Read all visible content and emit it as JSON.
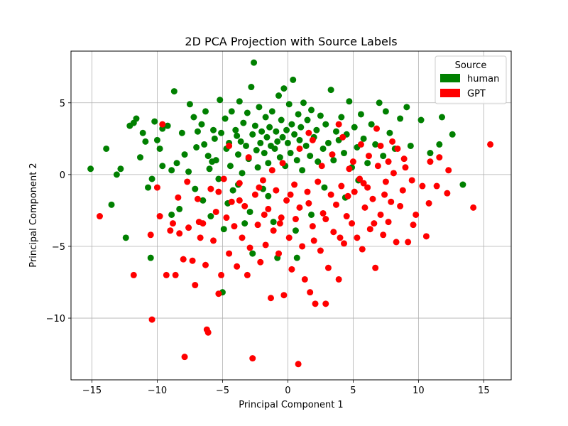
{
  "chart_data": {
    "type": "scatter",
    "title": "2D PCA Projection with Source Labels",
    "xlabel": "Principal Component 1",
    "ylabel": "Principal Component 2",
    "xlim": [
      -16.6,
      17.1
    ],
    "ylim": [
      -14.3,
      8.6
    ],
    "xticks": [
      -15,
      -10,
      -5,
      0,
      5,
      10,
      15
    ],
    "xtick_labels": [
      "−15",
      "−10",
      "−5",
      "0",
      "5",
      "10",
      "15"
    ],
    "yticks": [
      5,
      0,
      -5,
      -10
    ],
    "ytick_labels": [
      "5",
      "0",
      "−5",
      "−10"
    ],
    "grid": true,
    "legend": {
      "title": "Source",
      "placement": "top-right"
    },
    "series": [
      {
        "name": "human",
        "color": "#008000",
        "points": [
          [
            -15.1,
            0.4
          ],
          [
            -13.9,
            1.8
          ],
          [
            -13.5,
            -2.1
          ],
          [
            -13.1,
            0.0
          ],
          [
            -12.8,
            0.4
          ],
          [
            -12.4,
            -4.4
          ],
          [
            -11.8,
            3.6
          ],
          [
            -11.6,
            3.9
          ],
          [
            -11.1,
            2.9
          ],
          [
            -10.9,
            2.3
          ],
          [
            -10.7,
            -0.9
          ],
          [
            -10.4,
            -0.3
          ],
          [
            -10.2,
            3.7
          ],
          [
            -10.0,
            2.4
          ],
          [
            -9.8,
            1.8
          ],
          [
            -9.6,
            3.2
          ],
          [
            -9.2,
            3.4
          ],
          [
            -8.9,
            0.3
          ],
          [
            -8.7,
            5.8
          ],
          [
            -8.5,
            0.8
          ],
          [
            -8.3,
            -2.4
          ],
          [
            -8.1,
            2.9
          ],
          [
            -7.9,
            1.4
          ],
          [
            -7.6,
            0.2
          ],
          [
            -7.5,
            4.9
          ],
          [
            -7.2,
            4.0
          ],
          [
            -7.0,
            1.9
          ],
          [
            -6.9,
            3.0
          ],
          [
            -6.6,
            3.5
          ],
          [
            -6.4,
            2.1
          ],
          [
            -6.3,
            4.4
          ],
          [
            -6.1,
            1.3
          ],
          [
            -6.0,
            0.4
          ],
          [
            -5.9,
            -2.9
          ],
          [
            -5.7,
            3.1
          ],
          [
            -5.6,
            2.5
          ],
          [
            -5.5,
            1.0
          ],
          [
            -5.3,
            -0.3
          ],
          [
            -5.2,
            5.2
          ],
          [
            -5.1,
            2.9
          ],
          [
            -5.0,
            -8.2
          ],
          [
            -4.8,
            3.9
          ],
          [
            -4.7,
            1.8
          ],
          [
            -4.5,
            2.2
          ],
          [
            -4.4,
            0.6
          ],
          [
            -4.3,
            4.4
          ],
          [
            -4.2,
            -1.1
          ],
          [
            -4.0,
            3.1
          ],
          [
            -3.9,
            2.7
          ],
          [
            -3.8,
            1.4
          ],
          [
            -3.7,
            5.1
          ],
          [
            -3.6,
            2.3
          ],
          [
            -3.5,
            0.1
          ],
          [
            -3.4,
            3.6
          ],
          [
            -3.3,
            -3.4
          ],
          [
            -3.2,
            2.0
          ],
          [
            -3.1,
            4.3
          ],
          [
            -3.0,
            1.1
          ],
          [
            -2.9,
            -2.6
          ],
          [
            -2.8,
            6.1
          ],
          [
            -2.7,
            2.8
          ],
          [
            -2.6,
            7.8
          ],
          [
            -2.5,
            3.4
          ],
          [
            -2.4,
            1.7
          ],
          [
            -2.3,
            0.5
          ],
          [
            -2.2,
            4.7
          ],
          [
            -2.1,
            2.2
          ],
          [
            -2.0,
            3.0
          ],
          [
            -1.9,
            -1.0
          ],
          [
            -1.8,
            1.5
          ],
          [
            -1.7,
            4.0
          ],
          [
            -1.6,
            2.6
          ],
          [
            -1.5,
            0.8
          ],
          [
            -1.4,
            3.3
          ],
          [
            -1.3,
            2.0
          ],
          [
            -1.2,
            4.4
          ],
          [
            -1.1,
            -3.3
          ],
          [
            -1.0,
            1.8
          ],
          [
            -0.9,
            3.0
          ],
          [
            -0.8,
            2.3
          ],
          [
            -0.7,
            5.5
          ],
          [
            -0.6,
            1.2
          ],
          [
            -0.5,
            3.8
          ],
          [
            -0.4,
            2.6
          ],
          [
            -0.3,
            6.0
          ],
          [
            -0.2,
            0.6
          ],
          [
            -0.1,
            3.1
          ],
          [
            0.0,
            2.2
          ],
          [
            0.1,
            4.9
          ],
          [
            0.2,
            1.5
          ],
          [
            0.3,
            3.5
          ],
          [
            0.4,
            6.6
          ],
          [
            0.5,
            2.8
          ],
          [
            0.6,
            -3.9
          ],
          [
            0.7,
            1.0
          ],
          [
            0.8,
            4.2
          ],
          [
            0.9,
            2.4
          ],
          [
            1.0,
            3.3
          ],
          [
            1.1,
            0.3
          ],
          [
            1.2,
            5.0
          ],
          [
            1.4,
            2.0
          ],
          [
            1.5,
            3.8
          ],
          [
            1.7,
            1.3
          ],
          [
            1.8,
            4.5
          ],
          [
            2.0,
            2.6
          ],
          [
            2.2,
            3.1
          ],
          [
            2.3,
            0.9
          ],
          [
            2.5,
            4.1
          ],
          [
            2.7,
            1.8
          ],
          [
            2.9,
            3.5
          ],
          [
            3.1,
            2.2
          ],
          [
            3.3,
            5.9
          ],
          [
            3.5,
            1.0
          ],
          [
            3.7,
            3.0
          ],
          [
            3.9,
            2.4
          ],
          [
            4.1,
            4.0
          ],
          [
            4.3,
            1.5
          ],
          [
            4.5,
            2.8
          ],
          [
            4.7,
            5.1
          ],
          [
            4.9,
            0.5
          ],
          [
            5.1,
            3.3
          ],
          [
            5.3,
            1.9
          ],
          [
            5.6,
            4.2
          ],
          [
            5.8,
            2.5
          ],
          [
            6.1,
            0.8
          ],
          [
            6.4,
            3.5
          ],
          [
            6.7,
            2.1
          ],
          [
            7.0,
            5.0
          ],
          [
            7.3,
            1.3
          ],
          [
            7.5,
            4.4
          ],
          [
            7.8,
            2.9
          ],
          [
            8.2,
            1.8
          ],
          [
            8.6,
            3.9
          ],
          [
            9.1,
            4.7
          ],
          [
            9.4,
            2.0
          ],
          [
            10.2,
            3.8
          ],
          [
            10.9,
            1.5
          ],
          [
            11.6,
            2.1
          ],
          [
            11.8,
            4.0
          ],
          [
            12.6,
            2.8
          ],
          [
            13.4,
            -0.7
          ],
          [
            -0.8,
            -5.8
          ],
          [
            0.7,
            -5.8
          ],
          [
            -2.7,
            -5.5
          ],
          [
            -4.9,
            -3.8
          ],
          [
            -10.5,
            -5.8
          ],
          [
            -8.9,
            -2.8
          ],
          [
            -6.5,
            -1.8
          ],
          [
            -7.1,
            -1.0
          ],
          [
            -5.8,
            0.9
          ],
          [
            -4.6,
            -2.0
          ],
          [
            -3.8,
            -0.7
          ],
          [
            -1.5,
            -1.5
          ],
          [
            1.8,
            -2.8
          ],
          [
            2.8,
            -0.9
          ],
          [
            4.4,
            -1.6
          ],
          [
            5.4,
            -0.4
          ],
          [
            -9.6,
            0.6
          ],
          [
            -11.3,
            1.2
          ],
          [
            -12.1,
            3.4
          ]
        ]
      },
      {
        "name": "GPT",
        "color": "#ff0000",
        "points": [
          [
            -14.4,
            -2.9
          ],
          [
            -11.8,
            -7.0
          ],
          [
            -10.5,
            -4.2
          ],
          [
            -10.4,
            -10.1
          ],
          [
            -10.0,
            -0.9
          ],
          [
            -9.6,
            3.5
          ],
          [
            -9.3,
            -7.0
          ],
          [
            -9.0,
            -3.9
          ],
          [
            -8.8,
            -3.4
          ],
          [
            -8.6,
            -7.0
          ],
          [
            -8.3,
            -4.1
          ],
          [
            -8.0,
            -5.9
          ],
          [
            -7.9,
            -12.7
          ],
          [
            -7.6,
            -3.7
          ],
          [
            -7.3,
            -6.0
          ],
          [
            -7.1,
            -7.7
          ],
          [
            -6.9,
            -1.7
          ],
          [
            -6.7,
            -4.4
          ],
          [
            -6.5,
            -3.4
          ],
          [
            -6.3,
            -6.3
          ],
          [
            -6.2,
            -10.8
          ],
          [
            -6.1,
            -11.0
          ],
          [
            -5.9,
            -1.0
          ],
          [
            -5.7,
            -4.6
          ],
          [
            -5.5,
            -2.6
          ],
          [
            -5.3,
            -8.3
          ],
          [
            -5.1,
            -7.0
          ],
          [
            -4.9,
            -0.3
          ],
          [
            -4.7,
            -3.0
          ],
          [
            -4.5,
            -5.5
          ],
          [
            -4.3,
            -1.9
          ],
          [
            -4.1,
            -3.6
          ],
          [
            -3.9,
            -6.4
          ],
          [
            -3.7,
            -0.6
          ],
          [
            -3.5,
            -4.4
          ],
          [
            -3.3,
            -2.2
          ],
          [
            -3.1,
            -7.0
          ],
          [
            -2.9,
            -5.1
          ],
          [
            -2.7,
            -12.8
          ],
          [
            -2.5,
            -1.4
          ],
          [
            -2.3,
            -3.5
          ],
          [
            -2.1,
            -6.1
          ],
          [
            -1.9,
            -0.4
          ],
          [
            -1.7,
            -4.9
          ],
          [
            -1.5,
            -2.4
          ],
          [
            -1.3,
            -8.6
          ],
          [
            -1.1,
            -3.9
          ],
          [
            -0.9,
            -1.1
          ],
          [
            -0.7,
            -5.5
          ],
          [
            -0.5,
            -3.0
          ],
          [
            -0.3,
            -8.4
          ],
          [
            -0.1,
            -1.8
          ],
          [
            0.1,
            -4.4
          ],
          [
            0.3,
            -6.6
          ],
          [
            0.5,
            -0.7
          ],
          [
            0.6,
            -3.1
          ],
          [
            0.8,
            -13.2
          ],
          [
            0.9,
            -2.3
          ],
          [
            1.1,
            -5.0
          ],
          [
            1.3,
            -7.3
          ],
          [
            1.5,
            -1.2
          ],
          [
            1.7,
            -8.2
          ],
          [
            1.9,
            -3.6
          ],
          [
            2.1,
            -9.0
          ],
          [
            2.3,
            -0.5
          ],
          [
            2.5,
            -5.3
          ],
          [
            2.7,
            -2.7
          ],
          [
            2.9,
            -9.0
          ],
          [
            3.1,
            -6.5
          ],
          [
            3.3,
            -1.4
          ],
          [
            3.5,
            -4.0
          ],
          [
            3.7,
            -2.1
          ],
          [
            3.9,
            -7.3
          ],
          [
            4.1,
            -0.8
          ],
          [
            4.3,
            -4.8
          ],
          [
            4.5,
            -2.9
          ],
          [
            4.7,
            0.4
          ],
          [
            4.9,
            -3.4
          ],
          [
            5.1,
            -1.2
          ],
          [
            5.3,
            -4.4
          ],
          [
            5.5,
            -0.3
          ],
          [
            5.7,
            -5.2
          ],
          [
            5.9,
            -2.3
          ],
          [
            6.1,
            -0.9
          ],
          [
            6.3,
            -3.8
          ],
          [
            6.5,
            -1.7
          ],
          [
            6.7,
            -6.5
          ],
          [
            6.9,
            0.6
          ],
          [
            7.1,
            -2.8
          ],
          [
            7.3,
            -4.2
          ],
          [
            7.5,
            -0.5
          ],
          [
            7.7,
            -3.3
          ],
          [
            7.9,
            -1.9
          ],
          [
            8.1,
            0.1
          ],
          [
            8.3,
            -4.7
          ],
          [
            8.6,
            -2.2
          ],
          [
            8.9,
            1.1
          ],
          [
            9.2,
            -4.7
          ],
          [
            9.5,
            -0.4
          ],
          [
            9.8,
            -2.8
          ],
          [
            10.3,
            -0.8
          ],
          [
            10.6,
            -4.3
          ],
          [
            10.9,
            0.9
          ],
          [
            10.8,
            -2.0
          ],
          [
            11.4,
            -0.8
          ],
          [
            11.6,
            1.2
          ],
          [
            12.2,
            -1.3
          ],
          [
            12.3,
            0.3
          ],
          [
            14.2,
            -2.3
          ],
          [
            15.5,
            2.1
          ],
          [
            -4.5,
            2.0
          ],
          [
            -3.0,
            1.2
          ],
          [
            -1.2,
            0.3
          ],
          [
            0.9,
            1.8
          ],
          [
            1.9,
            2.4
          ],
          [
            2.6,
            0.6
          ],
          [
            3.4,
            1.4
          ],
          [
            4.2,
            2.6
          ],
          [
            5.0,
            0.9
          ],
          [
            5.6,
            2.1
          ],
          [
            6.2,
            1.3
          ],
          [
            7.1,
            2.0
          ],
          [
            7.7,
            0.9
          ],
          [
            8.4,
            1.8
          ],
          [
            9.0,
            0.5
          ],
          [
            8.0,
            2.3
          ],
          [
            6.8,
            3.2
          ],
          [
            3.9,
            3.5
          ],
          [
            1.6,
            2.9
          ],
          [
            -0.4,
            0.8
          ],
          [
            -2.2,
            -0.9
          ],
          [
            -5.3,
            -1.2
          ],
          [
            -6.8,
            -3.3
          ],
          [
            -7.7,
            -0.5
          ],
          [
            -8.4,
            -1.6
          ],
          [
            -9.8,
            -2.9
          ],
          [
            -3.7,
            -1.8
          ],
          [
            -1.8,
            -2.8
          ],
          [
            0.2,
            -1.4
          ],
          [
            1.6,
            -2.0
          ],
          [
            2.9,
            -3.1
          ],
          [
            4.6,
            -1.5
          ],
          [
            5.8,
            -0.6
          ],
          [
            7.4,
            -1.4
          ],
          [
            8.8,
            -1.1
          ],
          [
            9.6,
            -3.5
          ],
          [
            6.6,
            -3.4
          ],
          [
            4.0,
            -4.4
          ],
          [
            2.0,
            -4.6
          ],
          [
            -0.6,
            -3.4
          ]
        ]
      }
    ]
  }
}
